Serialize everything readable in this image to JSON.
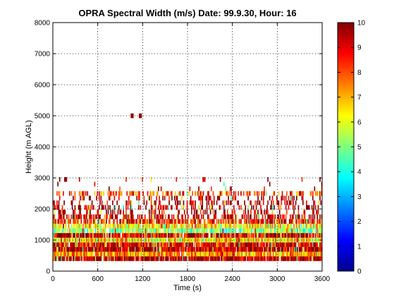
{
  "chart_data": {
    "type": "heatmap",
    "title": "OPRA Spectral Width (m/s)  Date: 99.9.30, Hour: 16",
    "xlabel": "Time (s)",
    "ylabel": "Height (m AGL)",
    "xlim": [
      0,
      3600
    ],
    "ylim": [
      0,
      8000
    ],
    "x_ticks": [
      "0",
      "600",
      "1200",
      "1800",
      "2400",
      "3000",
      "3600"
    ],
    "y_ticks": [
      "0",
      "1000",
      "2000",
      "3000",
      "4000",
      "5000",
      "6000",
      "7000",
      "8000"
    ],
    "colorbar": {
      "range": [
        0,
        10
      ],
      "ticks": [
        "0",
        "1",
        "2",
        "3",
        "4",
        "5",
        "6",
        "7",
        "8",
        "9",
        "10"
      ],
      "colormap": "jet"
    },
    "grid": true,
    "height_bins_m": [
      400,
      550,
      700,
      850,
      1000,
      1150,
      1300,
      1450,
      1600,
      1750,
      1900,
      2050,
      2200,
      2350,
      2500,
      2650,
      2800,
      2950
    ],
    "bands": [
      {
        "height_m": 400,
        "mean_value": 9.4,
        "coverage": 0.95
      },
      {
        "height_m": 550,
        "mean_value": 7.2,
        "coverage": 0.95
      },
      {
        "height_m": 700,
        "mean_value": 9.6,
        "coverage": 0.96
      },
      {
        "height_m": 850,
        "mean_value": 9.0,
        "coverage": 0.92
      },
      {
        "height_m": 1000,
        "mean_value": 6.5,
        "coverage": 0.92
      },
      {
        "height_m": 1150,
        "mean_value": 9.2,
        "coverage": 0.88
      },
      {
        "height_m": 1300,
        "mean_value": 5.0,
        "coverage": 0.85
      },
      {
        "height_m": 1450,
        "mean_value": 6.4,
        "coverage": 0.82
      },
      {
        "height_m": 1600,
        "mean_value": 8.6,
        "coverage": 0.72
      },
      {
        "height_m": 1750,
        "mean_value": 9.4,
        "coverage": 0.55
      },
      {
        "height_m": 1900,
        "mean_value": 9.5,
        "coverage": 0.3
      },
      {
        "height_m": 2050,
        "mean_value": 9.5,
        "coverage": 0.35
      },
      {
        "height_m": 2200,
        "mean_value": 9.5,
        "coverage": 0.28
      },
      {
        "height_m": 2350,
        "mean_value": 9.4,
        "coverage": 0.25
      },
      {
        "height_m": 2500,
        "mean_value": 8.0,
        "coverage": 0.45
      },
      {
        "height_m": 2650,
        "mean_value": 9.5,
        "coverage": 0.04
      },
      {
        "height_m": 2800,
        "mean_value": 9.6,
        "coverage": 0.03
      },
      {
        "height_m": 2950,
        "mean_value": 9.6,
        "coverage": 0.03
      }
    ],
    "isolated_cells": [
      {
        "time_s": 1040,
        "height_m": 5000,
        "value": 9.8
      },
      {
        "time_s": 1150,
        "height_m": 5000,
        "value": 9.8
      },
      {
        "time_s": 2000,
        "height_m": 2950,
        "value": 9.0
      },
      {
        "time_s": 150,
        "height_m": 2950,
        "value": 9.8
      }
    ]
  }
}
